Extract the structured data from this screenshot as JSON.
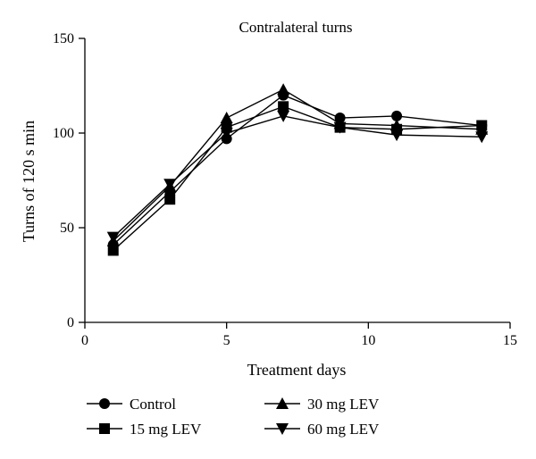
{
  "chart_data": {
    "type": "line",
    "title": "Contralateral turns",
    "xlabel": "Treatment days",
    "ylabel": "Turns of 120 s min",
    "xlim": [
      0,
      15
    ],
    "ylim": [
      0,
      150
    ],
    "xticks": [
      0,
      5,
      10,
      15
    ],
    "yticks": [
      0,
      50,
      100,
      150
    ],
    "grid": false,
    "legend_position": "bottom",
    "x": [
      1,
      3,
      5,
      7,
      9,
      11,
      14
    ],
    "series": [
      {
        "name": "Control",
        "marker": "circle",
        "values": [
          41,
          69,
          97,
          120,
          108,
          109,
          104
        ]
      },
      {
        "name": "15 mg LEV",
        "marker": "square",
        "values": [
          38,
          65,
          103,
          114,
          103,
          102,
          104
        ]
      },
      {
        "name": "30 mg LEV",
        "marker": "triangle-up",
        "values": [
          43,
          72,
          108,
          123,
          105,
          104,
          102
        ]
      },
      {
        "name": "60 mg LEV",
        "marker": "triangle-down",
        "values": [
          45,
          73,
          100,
          109,
          103,
          99,
          98
        ]
      }
    ]
  }
}
